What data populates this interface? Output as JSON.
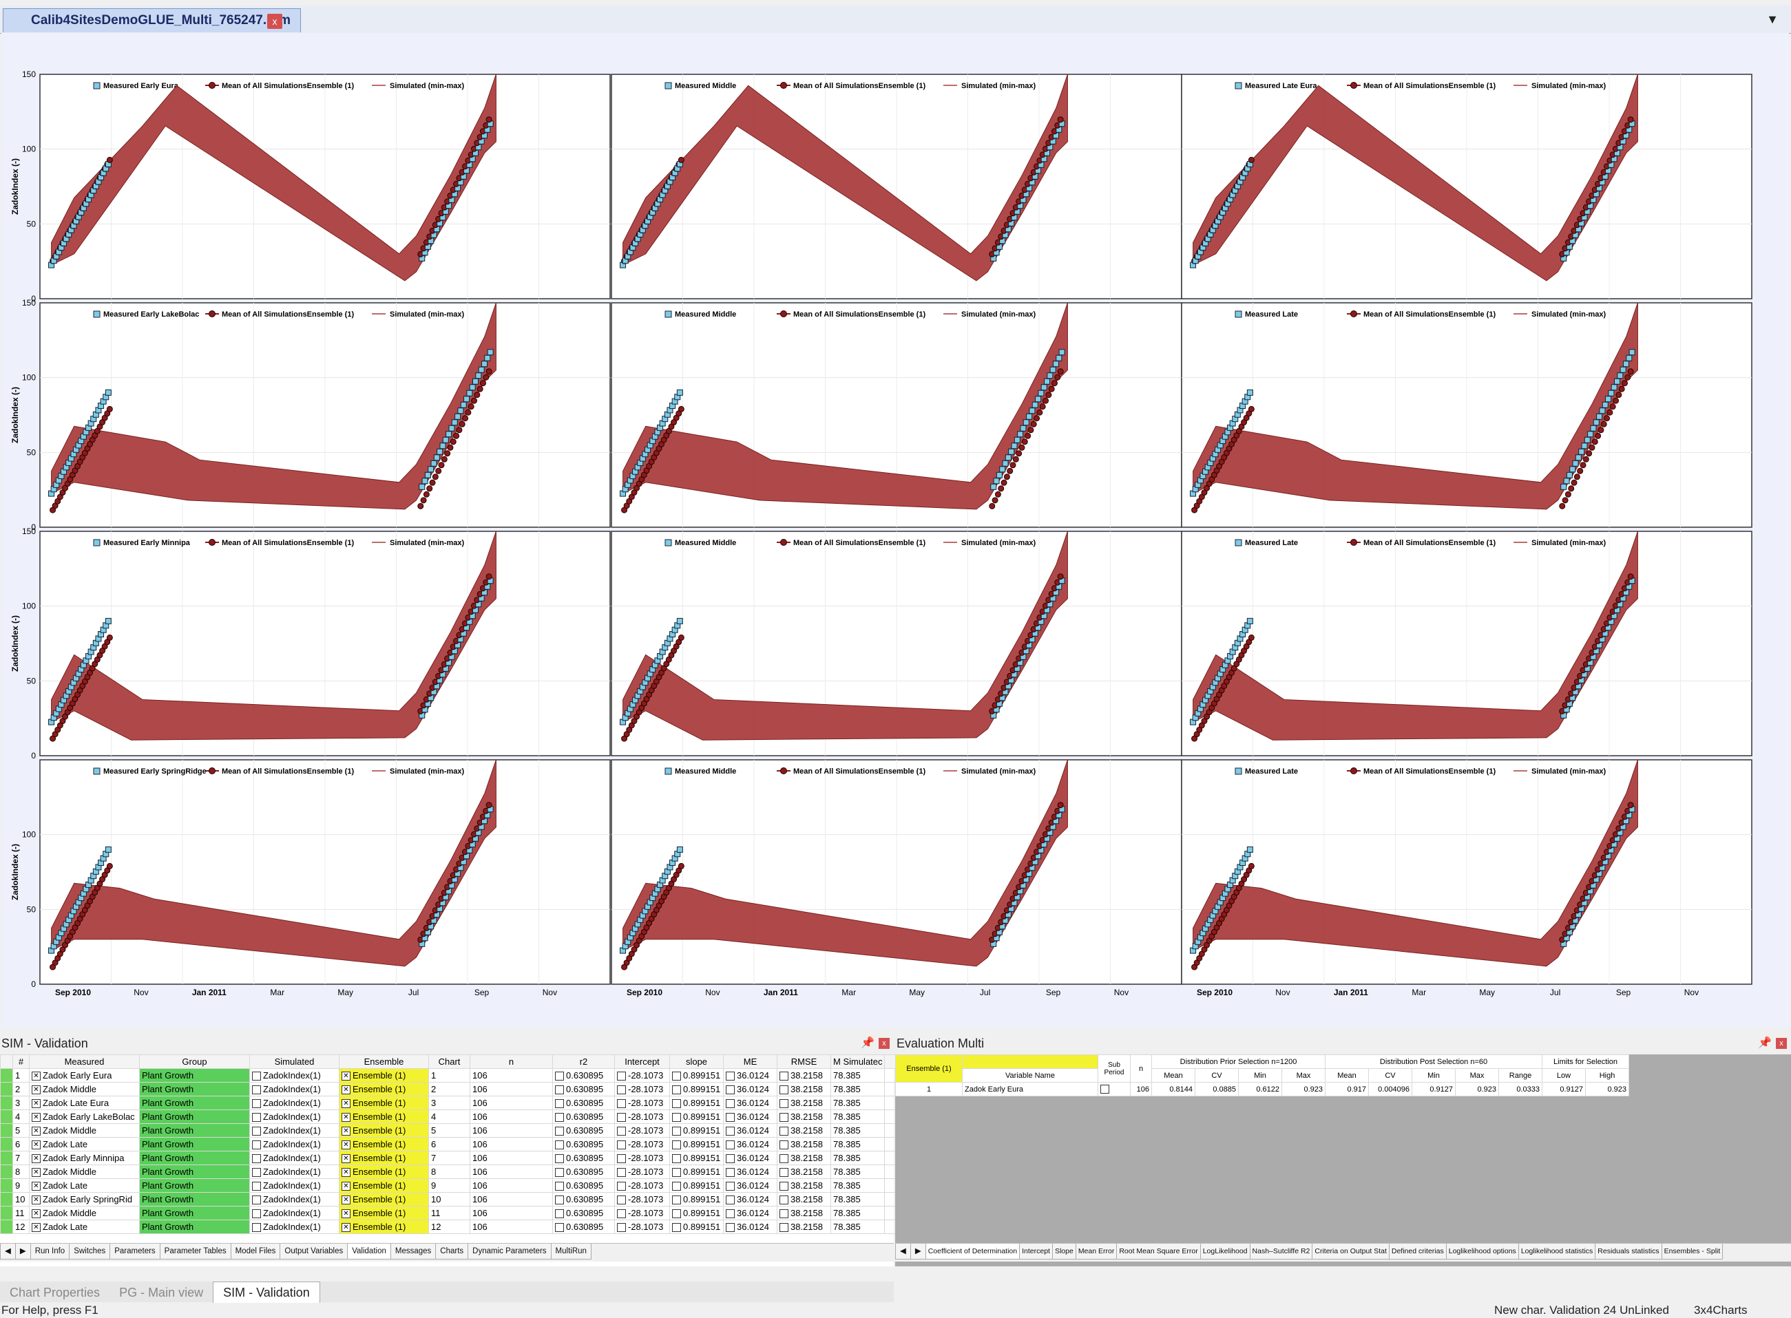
{
  "document_tab": {
    "title": "Calib4SitesDemoGLUE_Multi_765247.Sim",
    "close": "x"
  },
  "tabbar": {
    "dropdown": "▼"
  },
  "chart_data": [
    {
      "type": "scatter",
      "row": 0,
      "col": 0,
      "ylabel": "ZadokIndex (-)",
      "yticks": [
        "0",
        "50",
        "100",
        "150"
      ],
      "legend": [
        "Measured Early Eura",
        "Mean of All SimulationsEnsemble (1)",
        "Simulated (min-max)"
      ],
      "xticks": [
        "Sep 2010",
        "Nov",
        "Jan 2011",
        "Mar",
        "May",
        "Jul",
        "Sep",
        "Nov"
      ]
    },
    {
      "type": "scatter",
      "row": 0,
      "col": 1,
      "ylabel": "",
      "yticks": [],
      "legend": [
        "Measured Middle",
        "Mean of All SimulationsEnsemble (1)",
        "Simulated (min-max)"
      ],
      "xticks": [
        "Sep 2010",
        "Nov",
        "Jan 2011",
        "Mar",
        "May",
        "Jul",
        "Sep",
        "Nov"
      ]
    },
    {
      "type": "scatter",
      "row": 0,
      "col": 2,
      "ylabel": "",
      "yticks": [],
      "legend": [
        "Measured Late     Eura",
        "Mean of All SimulationsEnsemble (1)",
        "Simulated (min-max)"
      ],
      "xticks": [
        "Sep 2010",
        "Nov",
        "Jan 2011",
        "Mar",
        "May",
        "Jul",
        "Sep",
        "Nov"
      ]
    },
    {
      "type": "scatter",
      "row": 1,
      "col": 0,
      "ylabel": "ZadokIndex (-)",
      "yticks": [
        "0",
        "50",
        "100",
        "150"
      ],
      "legend": [
        "Measured Early LakeBolac",
        "Mean of All SimulationsEnsemble (1)",
        "Simulated (min-max)"
      ],
      "xticks": []
    },
    {
      "type": "scatter",
      "row": 1,
      "col": 1,
      "ylabel": "",
      "yticks": [],
      "legend": [
        "Measured Middle",
        "Mean of All SimulationsEnsemble (1)",
        "Simulated (min-max)"
      ],
      "xticks": []
    },
    {
      "type": "scatter",
      "row": 1,
      "col": 2,
      "ylabel": "",
      "yticks": [],
      "legend": [
        "Measured Late",
        "Mean of All SimulationsEnsemble (1)",
        "Simulated (min-max)"
      ],
      "xticks": []
    },
    {
      "type": "scatter",
      "row": 2,
      "col": 0,
      "ylabel": "ZadokIndex (-)",
      "yticks": [
        "0",
        "50",
        "100",
        "150"
      ],
      "legend": [
        "Measured Early     Minnipa",
        "Mean of All SimulationsEnsemble (1)",
        "Simulated (min-max)"
      ],
      "xticks": []
    },
    {
      "type": "scatter",
      "row": 2,
      "col": 1,
      "ylabel": "",
      "yticks": [],
      "legend": [
        "Measured Middle",
        "Mean of All SimulationsEnsemble (1)",
        "Simulated (min-max)"
      ],
      "xticks": []
    },
    {
      "type": "scatter",
      "row": 2,
      "col": 2,
      "ylabel": "",
      "yticks": [],
      "legend": [
        "Measured Late",
        "Mean of All SimulationsEnsemble (1)",
        "Simulated (min-max)"
      ],
      "xticks": []
    },
    {
      "type": "scatter",
      "row": 3,
      "col": 0,
      "ylabel": "ZadokIndex (-)",
      "yticks": [
        "0",
        "50",
        "100"
      ],
      "legend": [
        "Measured Early   SpringRidge",
        "Mean of All SimulationsEnsemble (1)",
        "Simulated (min-max)"
      ],
      "xticks": [
        "Sep 2010",
        "Nov",
        "Jan 2011",
        "Mar",
        "May",
        "Jul",
        "Sep",
        "Nov"
      ]
    },
    {
      "type": "scatter",
      "row": 3,
      "col": 1,
      "ylabel": "",
      "yticks": [],
      "legend": [
        "Measured Middle",
        "Mean of All SimulationsEnsemble (1)",
        "Simulated (min-max)"
      ],
      "xticks": [
        "Sep 2010",
        "Nov",
        "Jan 2011",
        "Mar",
        "May",
        "Jul",
        "Sep",
        "Nov"
      ]
    },
    {
      "type": "scatter",
      "row": 3,
      "col": 2,
      "ylabel": "",
      "yticks": [],
      "legend": [
        "Measured Late",
        "Mean of All SimulationsEnsemble (1)",
        "Simulated (min-max)"
      ],
      "xticks": [
        "Sep 2010",
        "Nov",
        "Jan 2011",
        "Mar",
        "May",
        "Jul",
        "Sep",
        "Nov"
      ]
    }
  ],
  "colors": {
    "measured": "#7ecbe6",
    "mean": "#8b1a1a",
    "band": "#a83a3a",
    "green": "#5bcf5b",
    "yellow": "#f3f230"
  },
  "sim_validation": {
    "title": "SIM - Validation",
    "pin": "📌",
    "close": "x",
    "columns": [
      "#",
      "Measured",
      "Group",
      "Simulated",
      "Ensemble",
      "Chart",
      "n",
      "r2",
      "Intercept",
      "slope",
      "ME",
      "RMSE",
      "M Simulatec"
    ],
    "rows": [
      {
        "num": "1",
        "measured": "Zadok Early Eura",
        "group": "Plant Growth",
        "simulated": "ZadokIndex(1)",
        "ensemble": "Ensemble (1)",
        "chart": "1",
        "n": "106",
        "r2": "0.630895",
        "intercept": "-28.1073",
        "slope": "0.899151",
        "me": "36.0124",
        "rmse": "38.2158",
        "msim": "78.385"
      },
      {
        "num": "2",
        "measured": "Zadok Middle",
        "group": "Plant Growth",
        "simulated": "ZadokIndex(1)",
        "ensemble": "Ensemble (1)",
        "chart": "2",
        "n": "106",
        "r2": "0.630895",
        "intercept": "-28.1073",
        "slope": "0.899151",
        "me": "36.0124",
        "rmse": "38.2158",
        "msim": "78.385"
      },
      {
        "num": "3",
        "measured": "Zadok Late     Eura",
        "group": "Plant Growth",
        "simulated": "ZadokIndex(1)",
        "ensemble": "Ensemble (1)",
        "chart": "3",
        "n": "106",
        "r2": "0.630895",
        "intercept": "-28.1073",
        "slope": "0.899151",
        "me": "36.0124",
        "rmse": "38.2158",
        "msim": "78.385"
      },
      {
        "num": "4",
        "measured": "Zadok Early LakeBolac",
        "group": "Plant Growth",
        "simulated": "ZadokIndex(1)",
        "ensemble": "Ensemble (1)",
        "chart": "4",
        "n": "106",
        "r2": "0.630895",
        "intercept": "-28.1073",
        "slope": "0.899151",
        "me": "36.0124",
        "rmse": "38.2158",
        "msim": "78.385"
      },
      {
        "num": "5",
        "measured": "Zadok Middle",
        "group": "Plant Growth",
        "simulated": "ZadokIndex(1)",
        "ensemble": "Ensemble (1)",
        "chart": "5",
        "n": "106",
        "r2": "0.630895",
        "intercept": "-28.1073",
        "slope": "0.899151",
        "me": "36.0124",
        "rmse": "38.2158",
        "msim": "78.385"
      },
      {
        "num": "6",
        "measured": "Zadok Late",
        "group": "Plant Growth",
        "simulated": "ZadokIndex(1)",
        "ensemble": "Ensemble (1)",
        "chart": "6",
        "n": "106",
        "r2": "0.630895",
        "intercept": "-28.1073",
        "slope": "0.899151",
        "me": "36.0124",
        "rmse": "38.2158",
        "msim": "78.385"
      },
      {
        "num": "7",
        "measured": "Zadok Early     Minnipa",
        "group": "Plant Growth",
        "simulated": "ZadokIndex(1)",
        "ensemble": "Ensemble (1)",
        "chart": "7",
        "n": "106",
        "r2": "0.630895",
        "intercept": "-28.1073",
        "slope": "0.899151",
        "me": "36.0124",
        "rmse": "38.2158",
        "msim": "78.385"
      },
      {
        "num": "8",
        "measured": "Zadok Middle",
        "group": "Plant Growth",
        "simulated": "ZadokIndex(1)",
        "ensemble": "Ensemble (1)",
        "chart": "8",
        "n": "106",
        "r2": "0.630895",
        "intercept": "-28.1073",
        "slope": "0.899151",
        "me": "36.0124",
        "rmse": "38.2158",
        "msim": "78.385"
      },
      {
        "num": "9",
        "measured": "Zadok Late",
        "group": "Plant Growth",
        "simulated": "ZadokIndex(1)",
        "ensemble": "Ensemble (1)",
        "chart": "9",
        "n": "106",
        "r2": "0.630895",
        "intercept": "-28.1073",
        "slope": "0.899151",
        "me": "36.0124",
        "rmse": "38.2158",
        "msim": "78.385"
      },
      {
        "num": "10",
        "measured": "Zadok Early    SpringRid",
        "group": "Plant Growth",
        "simulated": "ZadokIndex(1)",
        "ensemble": "Ensemble (1)",
        "chart": "10",
        "n": "106",
        "r2": "0.630895",
        "intercept": "-28.1073",
        "slope": "0.899151",
        "me": "36.0124",
        "rmse": "38.2158",
        "msim": "78.385"
      },
      {
        "num": "11",
        "measured": "Zadok Middle",
        "group": "Plant Growth",
        "simulated": "ZadokIndex(1)",
        "ensemble": "Ensemble (1)",
        "chart": "11",
        "n": "106",
        "r2": "0.630895",
        "intercept": "-28.1073",
        "slope": "0.899151",
        "me": "36.0124",
        "rmse": "38.2158",
        "msim": "78.385"
      },
      {
        "num": "12",
        "measured": "Zadok Late",
        "group": "Plant Growth",
        "simulated": "ZadokIndex(1)",
        "ensemble": "Ensemble (1)",
        "chart": "12",
        "n": "106",
        "r2": "0.630895",
        "intercept": "-28.1073",
        "slope": "0.899151",
        "me": "36.0124",
        "rmse": "38.2158",
        "msim": "78.385"
      }
    ],
    "tabs": [
      "Run Info",
      "Switches",
      "Parameters",
      "Parameter Tables",
      "Model Files",
      "Output Variables",
      "Validation",
      "Messages",
      "Charts",
      "Dynamic Parameters",
      "MultiRun"
    ],
    "active_tab": "Validation"
  },
  "evaluation_multi": {
    "title": "Evaluation Multi",
    "pin": "📌",
    "close": "x",
    "header": {
      "ensemble": "Ensemble (1)",
      "variable_name": "Variable Name",
      "sub_period": "Sub Period",
      "n": "n",
      "prior": "Distribution Prior Selection n=1200",
      "post": "Distribution Post Selection n=60",
      "limits": "Limits for Selection"
    },
    "subcols_prior": [
      "Mean",
      "CV",
      "Min",
      "Max"
    ],
    "subcols_post": [
      "Mean",
      "CV",
      "Min",
      "Max",
      "Range"
    ],
    "subcols_limits": [
      "Low",
      "High"
    ],
    "row": {
      "num": "1",
      "variable": "Zadok Early Eura",
      "n": "106",
      "p_mean": "0.8144",
      "p_cv": "0.0885",
      "p_min": "0.6122",
      "p_max": "0.923",
      "q_mean": "0.917",
      "q_cv": "0.004096",
      "q_min": "0.9127",
      "q_max": "0.923",
      "q_range": "0.0333",
      "low": "0.9127",
      "high": "0.923"
    },
    "tabs": [
      "Coefficient of Determination",
      "Intercept",
      "Slope",
      "Mean Error",
      "Root Mean Square Error",
      "LogLikelihood",
      "Nash–Sutcliffe R2",
      "Criteria on Output Stat",
      "Defined criterias",
      "Loglikelihood options",
      "Loglikelihood statistics",
      "Residuals statistics",
      "Ensembles - Split"
    ]
  },
  "view_tabs": [
    "Chart Properties",
    "PG - Main view",
    "SIM - Validation"
  ],
  "active_view": "SIM - Validation",
  "statusbar": {
    "help": "For Help, press F1",
    "info": "New char. Validation 24 UnLinked",
    "charts": "3x4Charts"
  }
}
